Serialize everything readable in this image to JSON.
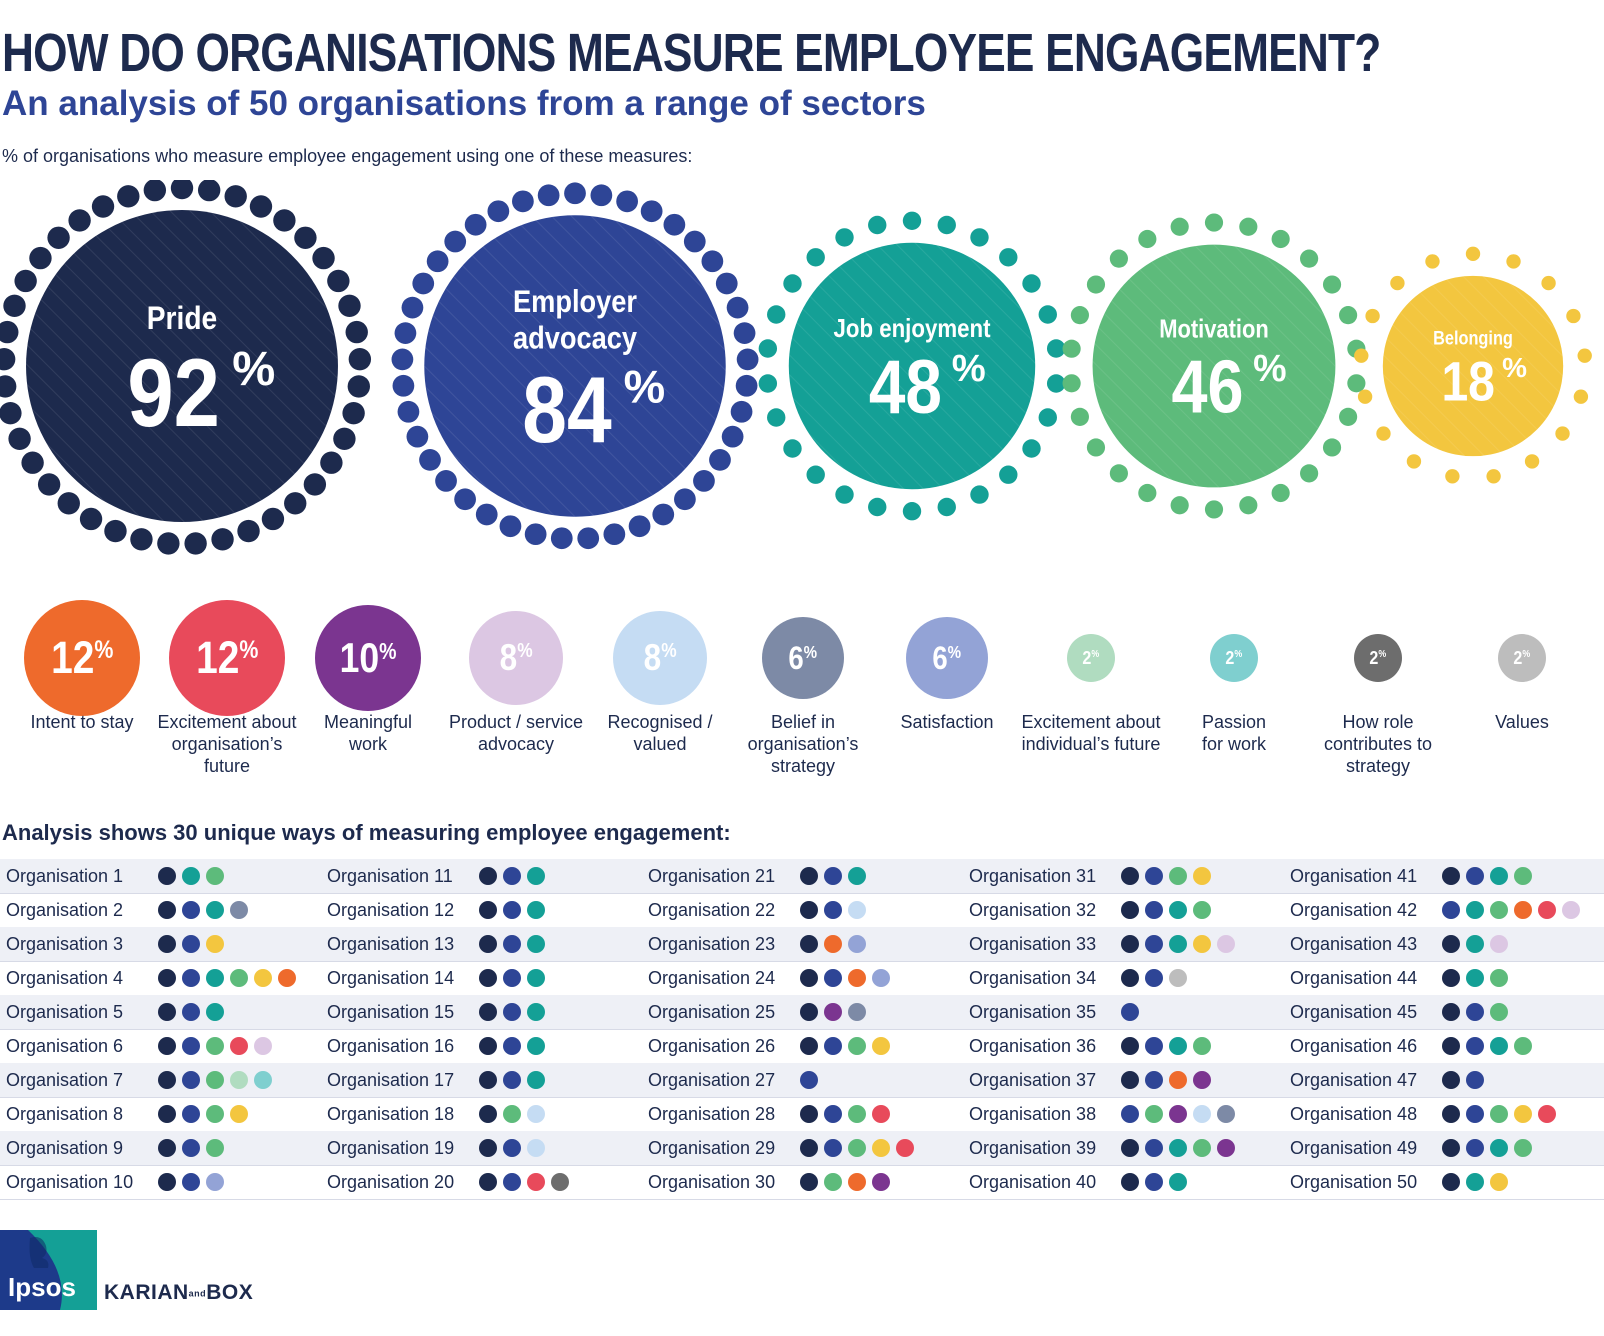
{
  "title": "HOW DO ORGANISATIONS MEASURE EMPLOYEE ENGAGEMENT?",
  "subtitle": "An analysis of 50 organisations from a range of sectors",
  "intro": "% of organisations who measure employee engagement using one of these measures:",
  "analysis_title": "Analysis shows 30 unique ways of measuring employee engagement:",
  "percent_symbol": "%",
  "logos": {
    "ipsos": "Ipsos",
    "karian": "KARIAN",
    "and": "and",
    "box": "BOX"
  },
  "colors": {
    "pride": "#1d2a4d",
    "employer_advocacy": "#2e4596",
    "job_enjoyment": "#14a096",
    "motivation": "#5dbb7b",
    "belonging": "#f3c63f",
    "intent_to_stay": "#ee6a2c",
    "excitement_org_future": "#e84a5b",
    "meaningful_work": "#7b3590",
    "product_service_advocacy": "#dcc7e3",
    "recognised_valued": "#c5dcf3",
    "belief_strategy": "#7d8aa6",
    "satisfaction": "#93a3d6",
    "excitement_individual_future": "#b0dcc0",
    "passion_for_work": "#7fcfcf",
    "how_role_contributes": "#6d6d6d",
    "values": "#bdbdbd"
  },
  "chart_data": [
    {
      "type": "bubble",
      "title": "",
      "unit": "%",
      "items": [
        {
          "key": "pride",
          "label": "Pride",
          "value": 92
        },
        {
          "key": "employer_advocacy",
          "label": "Employer advocacy",
          "value": 84
        },
        {
          "key": "job_enjoyment",
          "label": "Job enjoyment",
          "value": 48
        },
        {
          "key": "motivation",
          "label": "Motivation",
          "value": 46
        },
        {
          "key": "belonging",
          "label": "Belonging",
          "value": 18
        }
      ]
    },
    {
      "type": "bubble",
      "title": "",
      "unit": "%",
      "items": [
        {
          "key": "intent_to_stay",
          "label": "Intent to stay",
          "value": 12
        },
        {
          "key": "excitement_org_future",
          "label": "Excitement about organisation’s future",
          "value": 12
        },
        {
          "key": "meaningful_work",
          "label": "Meaningful work",
          "value": 10
        },
        {
          "key": "product_service_advocacy",
          "label": "Product / service advocacy",
          "value": 8
        },
        {
          "key": "recognised_valued",
          "label": "Recognised / valued",
          "value": 8
        },
        {
          "key": "belief_strategy",
          "label": "Belief in organisation’s strategy",
          "value": 6
        },
        {
          "key": "satisfaction",
          "label": "Satisfaction",
          "value": 6
        },
        {
          "key": "excitement_individual_future",
          "label": "Excitement about individual’s future",
          "value": 2
        },
        {
          "key": "passion_for_work",
          "label": "Passion for work",
          "value": 2
        },
        {
          "key": "how_role_contributes",
          "label": "How role contributes to strategy",
          "value": 2
        },
        {
          "key": "values",
          "label": "Values",
          "value": 2
        }
      ]
    },
    {
      "type": "table",
      "title": "",
      "rows": [
        {
          "name": "Organisation 1",
          "measures": [
            "pride",
            "job_enjoyment",
            "motivation"
          ]
        },
        {
          "name": "Organisation 2",
          "measures": [
            "pride",
            "employer_advocacy",
            "job_enjoyment",
            "belief_strategy"
          ]
        },
        {
          "name": "Organisation 3",
          "measures": [
            "pride",
            "employer_advocacy",
            "belonging"
          ]
        },
        {
          "name": "Organisation 4",
          "measures": [
            "pride",
            "employer_advocacy",
            "job_enjoyment",
            "motivation",
            "belonging",
            "intent_to_stay"
          ]
        },
        {
          "name": "Organisation 5",
          "measures": [
            "pride",
            "employer_advocacy",
            "job_enjoyment"
          ]
        },
        {
          "name": "Organisation 6",
          "measures": [
            "pride",
            "employer_advocacy",
            "motivation",
            "excitement_org_future",
            "product_service_advocacy"
          ]
        },
        {
          "name": "Organisation 7",
          "measures": [
            "pride",
            "employer_advocacy",
            "motivation",
            "excitement_individual_future",
            "passion_for_work"
          ]
        },
        {
          "name": "Organisation 8",
          "measures": [
            "pride",
            "employer_advocacy",
            "motivation",
            "belonging"
          ]
        },
        {
          "name": "Organisation 9",
          "measures": [
            "pride",
            "employer_advocacy",
            "motivation"
          ]
        },
        {
          "name": "Organisation 10",
          "measures": [
            "pride",
            "employer_advocacy",
            "satisfaction"
          ]
        },
        {
          "name": "Organisation 11",
          "measures": [
            "pride",
            "employer_advocacy",
            "job_enjoyment"
          ]
        },
        {
          "name": "Organisation 12",
          "measures": [
            "pride",
            "employer_advocacy",
            "job_enjoyment"
          ]
        },
        {
          "name": "Organisation 13",
          "measures": [
            "pride",
            "employer_advocacy",
            "job_enjoyment"
          ]
        },
        {
          "name": "Organisation 14",
          "measures": [
            "pride",
            "employer_advocacy",
            "job_enjoyment"
          ]
        },
        {
          "name": "Organisation 15",
          "measures": [
            "pride",
            "employer_advocacy",
            "job_enjoyment"
          ]
        },
        {
          "name": "Organisation 16",
          "measures": [
            "pride",
            "employer_advocacy",
            "job_enjoyment"
          ]
        },
        {
          "name": "Organisation 17",
          "measures": [
            "pride",
            "employer_advocacy",
            "job_enjoyment"
          ]
        },
        {
          "name": "Organisation 18",
          "measures": [
            "pride",
            "motivation",
            "recognised_valued"
          ]
        },
        {
          "name": "Organisation 19",
          "measures": [
            "pride",
            "employer_advocacy",
            "recognised_valued"
          ]
        },
        {
          "name": "Organisation 20",
          "measures": [
            "pride",
            "employer_advocacy",
            "excitement_org_future",
            "how_role_contributes"
          ]
        },
        {
          "name": "Organisation 21",
          "measures": [
            "pride",
            "employer_advocacy",
            "job_enjoyment"
          ]
        },
        {
          "name": "Organisation 22",
          "measures": [
            "pride",
            "employer_advocacy",
            "recognised_valued"
          ]
        },
        {
          "name": "Organisation 23",
          "measures": [
            "pride",
            "intent_to_stay",
            "satisfaction"
          ]
        },
        {
          "name": "Organisation 24",
          "measures": [
            "pride",
            "employer_advocacy",
            "intent_to_stay",
            "satisfaction"
          ]
        },
        {
          "name": "Organisation 25",
          "measures": [
            "pride",
            "meaningful_work",
            "belief_strategy"
          ]
        },
        {
          "name": "Organisation 26",
          "measures": [
            "pride",
            "employer_advocacy",
            "motivation",
            "belonging"
          ]
        },
        {
          "name": "Organisation 27",
          "measures": [
            "employer_advocacy"
          ]
        },
        {
          "name": "Organisation 28",
          "measures": [
            "pride",
            "employer_advocacy",
            "motivation",
            "excitement_org_future"
          ]
        },
        {
          "name": "Organisation 29",
          "measures": [
            "pride",
            "employer_advocacy",
            "motivation",
            "belonging",
            "excitement_org_future"
          ]
        },
        {
          "name": "Organisation 30",
          "measures": [
            "pride",
            "motivation",
            "intent_to_stay",
            "meaningful_work"
          ]
        },
        {
          "name": "Organisation 31",
          "measures": [
            "pride",
            "employer_advocacy",
            "motivation",
            "belonging"
          ]
        },
        {
          "name": "Organisation 32",
          "measures": [
            "pride",
            "employer_advocacy",
            "job_enjoyment",
            "motivation"
          ]
        },
        {
          "name": "Organisation 33",
          "measures": [
            "pride",
            "employer_advocacy",
            "job_enjoyment",
            "belonging",
            "product_service_advocacy"
          ]
        },
        {
          "name": "Organisation 34",
          "measures": [
            "pride",
            "employer_advocacy",
            "values"
          ]
        },
        {
          "name": "Organisation 35",
          "measures": [
            "employer_advocacy"
          ]
        },
        {
          "name": "Organisation 36",
          "measures": [
            "pride",
            "employer_advocacy",
            "job_enjoyment",
            "motivation"
          ]
        },
        {
          "name": "Organisation 37",
          "measures": [
            "pride",
            "employer_advocacy",
            "intent_to_stay",
            "meaningful_work"
          ]
        },
        {
          "name": "Organisation 38",
          "measures": [
            "employer_advocacy",
            "motivation",
            "meaningful_work",
            "recognised_valued",
            "belief_strategy"
          ]
        },
        {
          "name": "Organisation 39",
          "measures": [
            "pride",
            "employer_advocacy",
            "job_enjoyment",
            "motivation",
            "meaningful_work"
          ]
        },
        {
          "name": "Organisation 40",
          "measures": [
            "pride",
            "employer_advocacy",
            "job_enjoyment"
          ]
        },
        {
          "name": "Organisation 41",
          "measures": [
            "pride",
            "employer_advocacy",
            "job_enjoyment",
            "motivation"
          ]
        },
        {
          "name": "Organisation 42",
          "measures": [
            "employer_advocacy",
            "job_enjoyment",
            "motivation",
            "intent_to_stay",
            "excitement_org_future",
            "product_service_advocacy"
          ]
        },
        {
          "name": "Organisation 43",
          "measures": [
            "pride",
            "job_enjoyment",
            "product_service_advocacy"
          ]
        },
        {
          "name": "Organisation 44",
          "measures": [
            "pride",
            "job_enjoyment",
            "motivation"
          ]
        },
        {
          "name": "Organisation 45",
          "measures": [
            "pride",
            "employer_advocacy",
            "motivation"
          ]
        },
        {
          "name": "Organisation 46",
          "measures": [
            "pride",
            "employer_advocacy",
            "job_enjoyment",
            "motivation"
          ]
        },
        {
          "name": "Organisation 47",
          "measures": [
            "pride",
            "employer_advocacy"
          ]
        },
        {
          "name": "Organisation 48",
          "measures": [
            "pride",
            "employer_advocacy",
            "motivation",
            "belonging",
            "excitement_org_future"
          ]
        },
        {
          "name": "Organisation 49",
          "measures": [
            "pride",
            "employer_advocacy",
            "job_enjoyment",
            "motivation"
          ]
        },
        {
          "name": "Organisation 50",
          "measures": [
            "pride",
            "job_enjoyment",
            "belonging"
          ]
        }
      ]
    }
  ]
}
